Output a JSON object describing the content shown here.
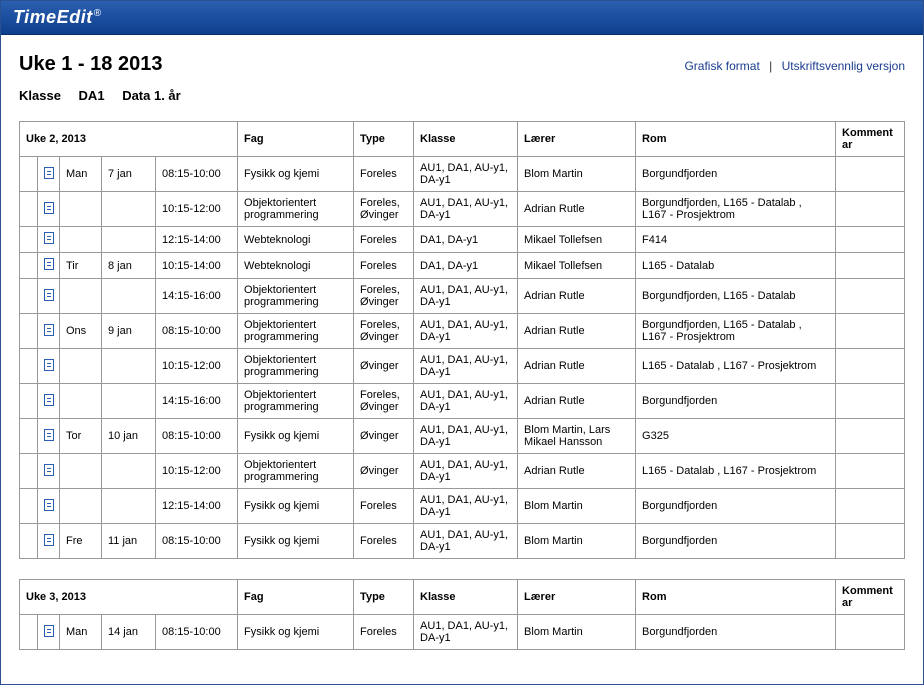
{
  "brand": "TimeEdit",
  "brand_mark": "®",
  "title": "Uke 1 - 18 2013",
  "links": {
    "graphic": "Grafisk format",
    "print": "Utskriftsvennlig versjon"
  },
  "subline": {
    "label": "Klasse",
    "code": "DA1",
    "desc": "Data 1. år"
  },
  "columns": {
    "fag": "Fag",
    "type": "Type",
    "klasse": "Klasse",
    "laerer": "Lærer",
    "rom": "Rom",
    "kommentar": "Kommentar"
  },
  "weeks": [
    {
      "heading": "Uke 2, 2013",
      "rows": [
        {
          "day": "Man",
          "date": "7 jan",
          "time": "08:15-10:00",
          "fag": "Fysikk og kjemi",
          "type": "Foreles",
          "klasse": "AU1, DA1, AU-y1, DA-y1",
          "laerer": "Blom Martin",
          "rom": "Borgundfjorden",
          "kommentar": ""
        },
        {
          "day": "",
          "date": "",
          "time": "10:15-12:00",
          "fag": "Objektorientert programmering",
          "type": "Foreles, Øvinger",
          "klasse": "AU1, DA1, AU-y1, DA-y1",
          "laerer": "Adrian Rutle",
          "rom": "Borgundfjorden, L165 - Datalab , L167 - Prosjektrom",
          "kommentar": ""
        },
        {
          "day": "",
          "date": "",
          "time": "12:15-14:00",
          "fag": "Webteknologi",
          "type": "Foreles",
          "klasse": "DA1, DA-y1",
          "laerer": "Mikael Tollefsen",
          "rom": "F414",
          "kommentar": ""
        },
        {
          "day": "Tir",
          "date": "8 jan",
          "time": "10:15-14:00",
          "fag": "Webteknologi",
          "type": "Foreles",
          "klasse": "DA1, DA-y1",
          "laerer": "Mikael Tollefsen",
          "rom": "L165 - Datalab",
          "kommentar": ""
        },
        {
          "day": "",
          "date": "",
          "time": "14:15-16:00",
          "fag": "Objektorientert programmering",
          "type": "Foreles, Øvinger",
          "klasse": "AU1, DA1, AU-y1, DA-y1",
          "laerer": "Adrian Rutle",
          "rom": "Borgundfjorden, L165 - Datalab",
          "kommentar": ""
        },
        {
          "day": "Ons",
          "date": "9 jan",
          "time": "08:15-10:00",
          "fag": "Objektorientert programmering",
          "type": "Foreles, Øvinger",
          "klasse": "AU1, DA1, AU-y1, DA-y1",
          "laerer": "Adrian Rutle",
          "rom": "Borgundfjorden, L165 - Datalab , L167 - Prosjektrom",
          "kommentar": ""
        },
        {
          "day": "",
          "date": "",
          "time": "10:15-12:00",
          "fag": "Objektorientert programmering",
          "type": "Øvinger",
          "klasse": "AU1, DA1, AU-y1, DA-y1",
          "laerer": "Adrian Rutle",
          "rom": "L165 - Datalab , L167 - Prosjektrom",
          "kommentar": ""
        },
        {
          "day": "",
          "date": "",
          "time": "14:15-16:00",
          "fag": "Objektorientert programmering",
          "type": "Foreles, Øvinger",
          "klasse": "AU1, DA1, AU-y1, DA-y1",
          "laerer": "Adrian Rutle",
          "rom": "Borgundfjorden",
          "kommentar": ""
        },
        {
          "day": "Tor",
          "date": "10 jan",
          "time": "08:15-10:00",
          "fag": "Fysikk og kjemi",
          "type": "Øvinger",
          "klasse": "AU1, DA1, AU-y1, DA-y1",
          "laerer": "Blom Martin, Lars Mikael Hansson",
          "rom": "G325",
          "kommentar": ""
        },
        {
          "day": "",
          "date": "",
          "time": "10:15-12:00",
          "fag": "Objektorientert programmering",
          "type": "Øvinger",
          "klasse": "AU1, DA1, AU-y1, DA-y1",
          "laerer": "Adrian Rutle",
          "rom": "L165 - Datalab , L167 - Prosjektrom",
          "kommentar": ""
        },
        {
          "day": "",
          "date": "",
          "time": "12:15-14:00",
          "fag": "Fysikk og kjemi",
          "type": "Foreles",
          "klasse": "AU1, DA1, AU-y1, DA-y1",
          "laerer": "Blom Martin",
          "rom": "Borgundfjorden",
          "kommentar": ""
        },
        {
          "day": "Fre",
          "date": "11 jan",
          "time": "08:15-10:00",
          "fag": "Fysikk og kjemi",
          "type": "Foreles",
          "klasse": "AU1, DA1, AU-y1, DA-y1",
          "laerer": "Blom Martin",
          "rom": "Borgundfjorden",
          "kommentar": ""
        }
      ]
    },
    {
      "heading": "Uke 3, 2013",
      "rows": [
        {
          "day": "Man",
          "date": "14 jan",
          "time": "08:15-10:00",
          "fag": "Fysikk og kjemi",
          "type": "Foreles",
          "klasse": "AU1, DA1, AU-y1, DA-y1",
          "laerer": "Blom Martin",
          "rom": "Borgundfjorden",
          "kommentar": ""
        }
      ]
    }
  ]
}
